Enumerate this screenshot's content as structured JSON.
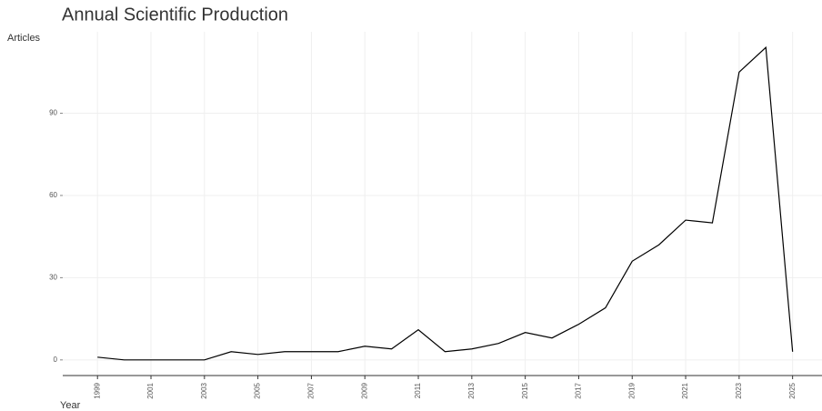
{
  "chart_data": {
    "type": "line",
    "title": "Annual Scientific Production",
    "y_label": "Articles",
    "x_label": "Year",
    "x": [
      1999,
      2000,
      2001,
      2002,
      2003,
      2004,
      2005,
      2006,
      2007,
      2008,
      2009,
      2010,
      2011,
      2012,
      2013,
      2014,
      2015,
      2016,
      2017,
      2018,
      2019,
      2020,
      2021,
      2022,
      2023,
      2024,
      2025
    ],
    "series": [
      {
        "name": "Articles",
        "color": "#000000",
        "values": [
          1,
          0,
          0,
          0,
          0,
          3,
          2,
          3,
          3,
          3,
          5,
          4,
          11,
          3,
          4,
          6,
          10,
          8,
          13,
          19,
          36,
          42,
          51,
          50,
          105,
          114,
          3
        ]
      }
    ],
    "xlim": [
      1997.7,
      2026.1
    ],
    "ylim": [
      -5.7,
      119.7
    ],
    "xticks": [
      1999,
      2001,
      2003,
      2005,
      2007,
      2009,
      2011,
      2013,
      2015,
      2017,
      2019,
      2021,
      2023,
      2025
    ],
    "yticks": [
      0,
      30,
      60,
      90
    ],
    "grid": true
  }
}
